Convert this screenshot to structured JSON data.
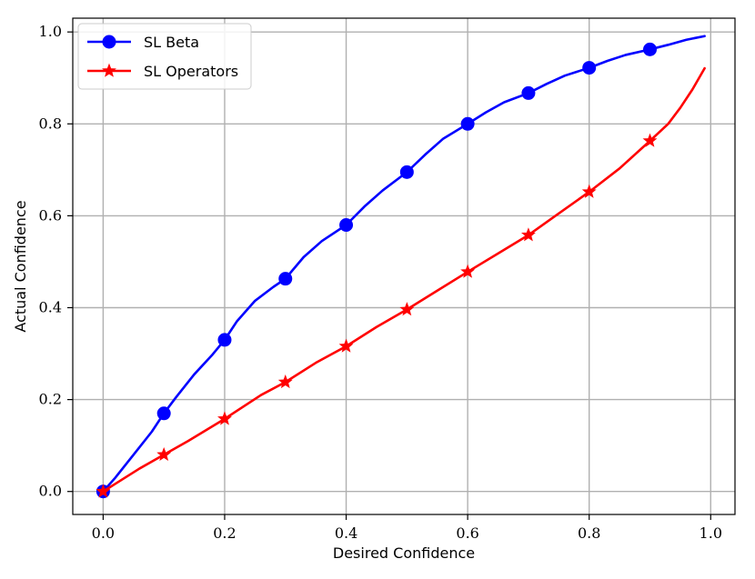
{
  "chart_data": {
    "type": "line",
    "title": "",
    "xlabel": "Desired Confidence",
    "ylabel": "Actual Confidence",
    "xlim": [
      -0.05,
      1.04
    ],
    "ylim": [
      -0.05,
      1.03
    ],
    "xticks": [
      0.0,
      0.2,
      0.4,
      0.6,
      0.8,
      1.0
    ],
    "yticks": [
      0.0,
      0.2,
      0.4,
      0.6,
      0.8,
      1.0
    ],
    "xtick_labels": [
      "0.0",
      "0.2",
      "0.4",
      "0.6",
      "0.8",
      "1.0"
    ],
    "ytick_labels": [
      "0.0",
      "0.2",
      "0.4",
      "0.6",
      "0.8",
      "1.0"
    ],
    "grid": true,
    "legend_position": "top-left",
    "series": [
      {
        "name": "SL Beta",
        "color": "#0000ff",
        "marker": "circle",
        "x": [
          0.0,
          0.1,
          0.2,
          0.3,
          0.4,
          0.5,
          0.6,
          0.7,
          0.8,
          0.9
        ],
        "y": [
          0.0,
          0.17,
          0.33,
          0.463,
          0.58,
          0.695,
          0.8,
          0.867,
          0.922,
          0.962
        ],
        "line_x": [
          0.0,
          0.02,
          0.05,
          0.08,
          0.1,
          0.12,
          0.15,
          0.18,
          0.2,
          0.22,
          0.25,
          0.28,
          0.3,
          0.33,
          0.36,
          0.4,
          0.43,
          0.46,
          0.5,
          0.53,
          0.56,
          0.6,
          0.63,
          0.66,
          0.7,
          0.73,
          0.76,
          0.8,
          0.83,
          0.86,
          0.9,
          0.93,
          0.96,
          0.99
        ],
        "line_y": [
          0.0,
          0.03,
          0.08,
          0.13,
          0.17,
          0.205,
          0.255,
          0.298,
          0.33,
          0.37,
          0.415,
          0.445,
          0.463,
          0.51,
          0.545,
          0.58,
          0.62,
          0.655,
          0.695,
          0.733,
          0.768,
          0.8,
          0.825,
          0.847,
          0.867,
          0.887,
          0.905,
          0.922,
          0.937,
          0.95,
          0.962,
          0.972,
          0.983,
          0.991
        ]
      },
      {
        "name": "SL Operators",
        "color": "#ff0000",
        "marker": "star",
        "x": [
          0.0,
          0.1,
          0.2,
          0.3,
          0.4,
          0.5,
          0.6,
          0.7,
          0.8,
          0.9
        ],
        "y": [
          0.0,
          0.08,
          0.158,
          0.238,
          0.316,
          0.396,
          0.478,
          0.558,
          0.652,
          0.763
        ],
        "line_x": [
          0.0,
          0.03,
          0.06,
          0.1,
          0.14,
          0.2,
          0.26,
          0.3,
          0.35,
          0.4,
          0.45,
          0.5,
          0.55,
          0.6,
          0.65,
          0.7,
          0.75,
          0.8,
          0.85,
          0.9,
          0.93,
          0.95,
          0.97,
          0.99
        ],
        "line_y": [
          0.0,
          0.025,
          0.05,
          0.08,
          0.11,
          0.158,
          0.21,
          0.238,
          0.28,
          0.316,
          0.358,
          0.396,
          0.437,
          0.478,
          0.518,
          0.558,
          0.605,
          0.652,
          0.703,
          0.763,
          0.8,
          0.835,
          0.875,
          0.921
        ]
      }
    ]
  }
}
